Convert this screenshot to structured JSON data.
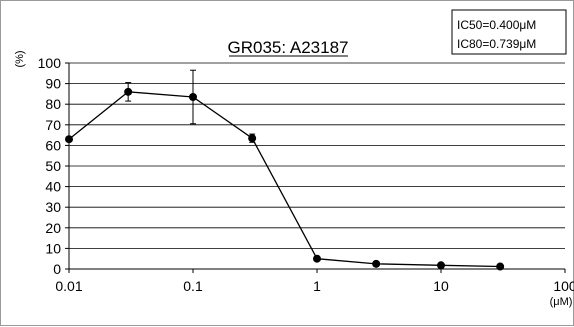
{
  "chart_data": {
    "type": "line",
    "title": "GR035: A23187",
    "ylabel": "(%)",
    "xlabel": "(μM)",
    "x_scale": "log",
    "xlim": [
      0.01,
      100
    ],
    "ylim": [
      0,
      100
    ],
    "x_ticks": [
      0.01,
      0.1,
      1,
      10,
      100
    ],
    "x_tick_labels": [
      "0.01",
      "0.1",
      "1",
      "10",
      "100"
    ],
    "y_ticks": [
      0,
      10,
      20,
      30,
      40,
      50,
      60,
      70,
      80,
      90,
      100
    ],
    "y_tick_labels": [
      "0",
      "10",
      "20",
      "30",
      "40",
      "50",
      "60",
      "70",
      "80",
      "90",
      "100"
    ],
    "grid": "horizontal",
    "series": [
      {
        "x": [
          0.01,
          0.03,
          0.1,
          0.3,
          1,
          3,
          10,
          30
        ],
        "y": [
          63,
          86,
          83.5,
          63.5,
          5,
          2.5,
          1.8,
          1.2
        ],
        "error": [
          0,
          4.5,
          13,
          2,
          0,
          0,
          0,
          0
        ],
        "color": "#000000"
      }
    ],
    "annotation": [
      "IC50=0.400μM",
      "IC80=0.739μM"
    ]
  }
}
